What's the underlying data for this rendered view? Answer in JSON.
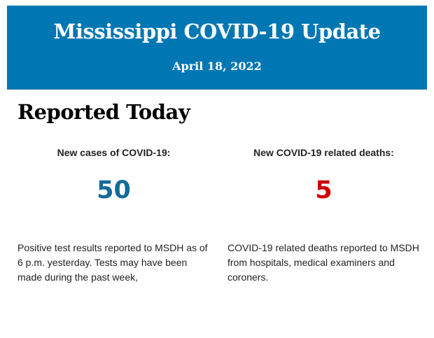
{
  "header": {
    "title": "Mississippi COVID-19 Update",
    "date": "April 18, 2022",
    "background_color": "#0077b3"
  },
  "section": {
    "heading": "Reported Today"
  },
  "stats": [
    {
      "label": "New cases of COVID-19:",
      "value": "50",
      "color": "#126b9b",
      "description": "Positive test results reported to MSDH as of 6 p.m. yesterday. Tests may have been made during the past week,"
    },
    {
      "label": "New COVID-19 related deaths:",
      "value": "5",
      "color": "#cc0000",
      "description": "COVID-19 related deaths reported to MSDH from hospitals, medical examiners and coroners."
    }
  ]
}
